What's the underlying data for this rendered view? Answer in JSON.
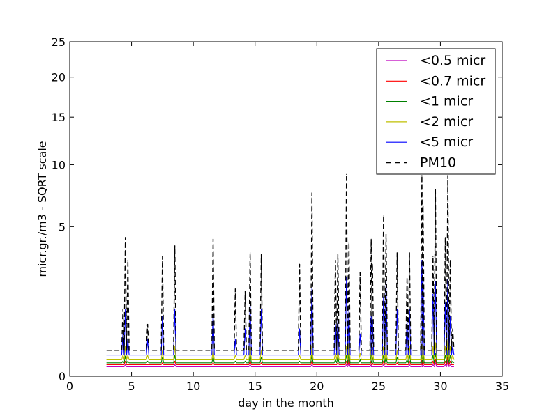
{
  "chart_data": {
    "type": "line",
    "title": "",
    "xlabel": "day in the month",
    "ylabel": "micr.gr./m3 - SQRT scale",
    "xlim": [
      0,
      35
    ],
    "ylim": [
      0,
      25
    ],
    "y_scale": "sqrt",
    "grid": false,
    "legend_position": "top-right",
    "x_ticks": [
      0,
      5,
      10,
      15,
      20,
      25,
      30,
      35
    ],
    "x_tick_labels": [
      "0",
      "5",
      "10",
      "15",
      "20",
      "25",
      "30",
      "35"
    ],
    "y_ticks": [
      0,
      5,
      10,
      15,
      20,
      25
    ],
    "y_tick_labels": [
      "0",
      "5",
      "10",
      "15",
      "20",
      "25"
    ],
    "x": [
      3.0,
      4.3,
      4.5,
      4.7,
      6.3,
      7.5,
      8.5,
      11.6,
      13.4,
      14.2,
      14.6,
      15.5,
      18.6,
      19.6,
      21.5,
      21.7,
      22.4,
      22.6,
      23.5,
      24.4,
      24.5,
      25.4,
      25.6,
      26.5,
      27.3,
      27.5,
      28.5,
      28.6,
      29.4,
      29.6,
      30.4,
      30.6,
      30.8,
      31.0
    ],
    "series": [
      {
        "name": "<0.5 micr",
        "color": "#bf00bf",
        "dashed": false,
        "values": [
          0.02,
          0.02,
          0.03,
          0.02,
          0.02,
          0.02,
          0.03,
          0.02,
          0.02,
          0.02,
          0.03,
          0.02,
          0.02,
          0.03,
          0.02,
          0.02,
          0.03,
          0.04,
          0.02,
          0.03,
          0.02,
          0.03,
          0.02,
          0.02,
          0.02,
          0.03,
          0.04,
          0.03,
          0.03,
          0.04,
          0.03,
          0.05,
          0.03,
          0.02
        ]
      },
      {
        "name": "<0.7 micr",
        "color": "#ff0000",
        "dashed": false,
        "values": [
          0.03,
          0.03,
          0.05,
          0.03,
          0.03,
          0.04,
          0.05,
          0.04,
          0.03,
          0.03,
          0.05,
          0.04,
          0.03,
          0.05,
          0.03,
          0.04,
          0.05,
          0.06,
          0.03,
          0.05,
          0.04,
          0.05,
          0.04,
          0.04,
          0.03,
          0.05,
          0.06,
          0.05,
          0.05,
          0.06,
          0.05,
          0.08,
          0.05,
          0.03
        ]
      },
      {
        "name": "<1 micr",
        "color": "#008000",
        "dashed": false,
        "values": [
          0.04,
          0.05,
          0.09,
          0.05,
          0.05,
          0.08,
          0.1,
          0.08,
          0.05,
          0.05,
          0.1,
          0.08,
          0.05,
          0.1,
          0.06,
          0.08,
          0.1,
          0.12,
          0.06,
          0.1,
          0.08,
          0.1,
          0.08,
          0.08,
          0.06,
          0.1,
          0.12,
          0.1,
          0.1,
          0.12,
          0.1,
          0.15,
          0.1,
          0.05
        ]
      },
      {
        "name": "<2 micr",
        "color": "#bfbf00",
        "dashed": false,
        "values": [
          0.06,
          0.1,
          0.2,
          0.1,
          0.1,
          0.15,
          0.2,
          0.15,
          0.1,
          0.1,
          0.2,
          0.15,
          0.1,
          0.2,
          0.12,
          0.15,
          0.2,
          0.25,
          0.12,
          0.2,
          0.15,
          0.2,
          0.15,
          0.15,
          0.12,
          0.2,
          0.25,
          0.2,
          0.2,
          0.25,
          0.2,
          0.3,
          0.2,
          0.1
        ]
      },
      {
        "name": "<5 micr",
        "color": "#0000ff",
        "dashed": false,
        "values": [
          0.1,
          0.4,
          1.0,
          0.3,
          0.3,
          0.8,
          1.0,
          0.9,
          0.3,
          0.5,
          1.2,
          1.0,
          0.5,
          1.7,
          0.6,
          0.7,
          2.2,
          1.0,
          0.4,
          0.8,
          0.7,
          1.4,
          2.0,
          1.0,
          0.7,
          1.0,
          3.0,
          2.0,
          1.5,
          2.0,
          1.2,
          2.1,
          0.8,
          0.2
        ]
      },
      {
        "name": "PM10",
        "color": "#000000",
        "dashed": true,
        "values": [
          0.15,
          1.0,
          4.3,
          3.0,
          0.6,
          3.2,
          3.8,
          4.2,
          1.7,
          1.6,
          3.4,
          3.3,
          2.8,
          7.5,
          3.0,
          3.3,
          9.1,
          4.0,
          2.4,
          4.2,
          2.8,
          5.8,
          4.5,
          3.4,
          2.2,
          3.4,
          9.0,
          6.5,
          3.2,
          7.8,
          4.3,
          9.0,
          3.0,
          0.5
        ]
      }
    ]
  }
}
